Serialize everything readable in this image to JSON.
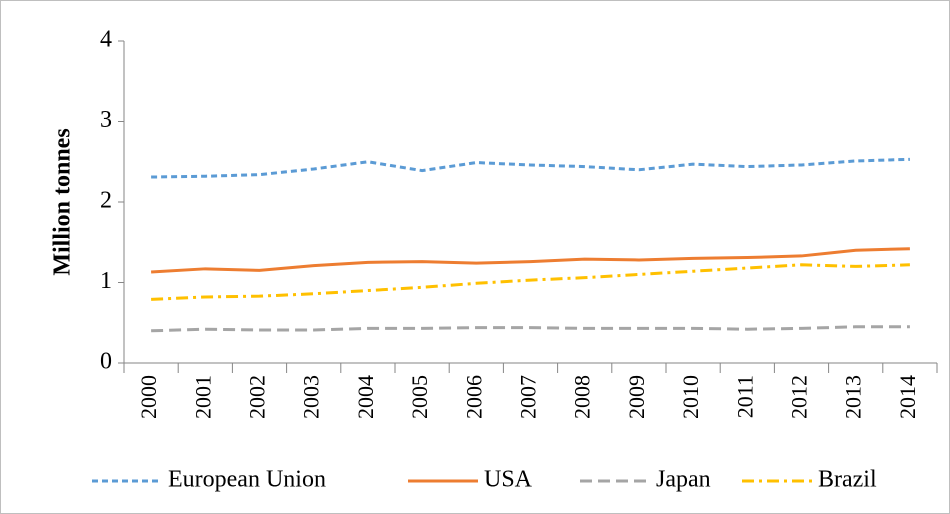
{
  "chart_data": {
    "type": "line",
    "y_label": "Million tonnes",
    "categories": [
      "2000",
      "2001",
      "2002",
      "2003",
      "2004",
      "2005",
      "2006",
      "2007",
      "2008",
      "2009",
      "2010",
      "2011",
      "2012",
      "2013",
      "2014"
    ],
    "series": [
      {
        "name": "European Union",
        "color": "#5b9bd5",
        "dash": "6,4",
        "values": [
          2.31,
          2.32,
          2.34,
          2.41,
          2.5,
          2.39,
          2.49,
          2.46,
          2.44,
          2.4,
          2.47,
          2.44,
          2.46,
          2.51,
          2.53
        ]
      },
      {
        "name": "USA",
        "color": "#ed7d31",
        "dash": "none",
        "values": [
          1.13,
          1.17,
          1.15,
          1.21,
          1.25,
          1.26,
          1.24,
          1.26,
          1.29,
          1.28,
          1.3,
          1.31,
          1.33,
          1.4,
          1.42
        ]
      },
      {
        "name": "Japan",
        "color": "#a5a5a5",
        "dash": "12,6",
        "values": [
          0.4,
          0.42,
          0.41,
          0.41,
          0.43,
          0.43,
          0.44,
          0.44,
          0.43,
          0.43,
          0.43,
          0.42,
          0.43,
          0.45,
          0.45
        ]
      },
      {
        "name": "Brazil",
        "color": "#ffc000",
        "dash": "12,5,3,5",
        "values": [
          0.79,
          0.82,
          0.83,
          0.86,
          0.9,
          0.94,
          0.99,
          1.03,
          1.06,
          1.1,
          1.14,
          1.18,
          1.22,
          1.2,
          1.22
        ]
      }
    ],
    "ylim": [
      0,
      4
    ],
    "yticks": [
      0,
      1,
      2,
      3,
      4
    ],
    "grid": false,
    "legend": "bottom"
  }
}
